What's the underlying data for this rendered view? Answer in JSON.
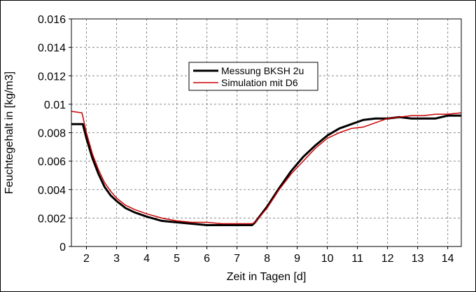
{
  "chart_data": {
    "type": "line",
    "title": "",
    "xlabel": "Zeit in Tagen [d]",
    "ylabel": "Feuchtegehalt in [kg/m3]",
    "xlim": [
      1.5,
      14.45
    ],
    "ylim": [
      0,
      0.016
    ],
    "xticks": [
      2,
      3,
      4,
      5,
      6,
      7,
      8,
      9,
      10,
      11,
      12,
      13,
      14
    ],
    "xtick_labels": [
      "2",
      "3",
      "4",
      "5",
      "6",
      "7",
      "8",
      "9",
      "10",
      "11",
      "12",
      "13",
      "14"
    ],
    "yticks": [
      0,
      0.002,
      0.004,
      0.006,
      0.008,
      0.01,
      0.012,
      0.014,
      0.016
    ],
    "ytick_labels": [
      "0",
      "0.002",
      "0.004",
      "0.006",
      "0.008",
      "0.01",
      "0.012",
      "0.014",
      "0.016"
    ],
    "grid": true,
    "legend": "upper-center",
    "series": [
      {
        "name": "Messung BKSH 2u",
        "color": "#000000",
        "x": [
          1.5,
          1.88,
          2.0,
          2.2,
          2.4,
          2.6,
          2.8,
          3.0,
          3.3,
          3.6,
          4.0,
          4.5,
          5.0,
          5.5,
          6.0,
          6.5,
          7.0,
          7.5,
          7.6,
          8.0,
          8.4,
          8.8,
          9.2,
          9.6,
          10.0,
          10.4,
          10.8,
          11.2,
          11.6,
          12.0,
          12.4,
          12.8,
          13.2,
          13.6,
          14.0,
          14.45
        ],
        "y": [
          0.0086,
          0.0086,
          0.0076,
          0.0062,
          0.0051,
          0.0042,
          0.0036,
          0.0032,
          0.0027,
          0.0024,
          0.0021,
          0.0018,
          0.0017,
          0.0016,
          0.0015,
          0.0015,
          0.0015,
          0.0015,
          0.0017,
          0.0028,
          0.0041,
          0.0053,
          0.0063,
          0.0071,
          0.0078,
          0.0083,
          0.0086,
          0.0089,
          0.009,
          0.009,
          0.0091,
          0.009,
          0.009,
          0.009,
          0.0092,
          0.0092
        ]
      },
      {
        "name": "Simulation mit D6",
        "color": "#cc0000",
        "x": [
          1.5,
          1.85,
          2.0,
          2.2,
          2.4,
          2.6,
          2.8,
          3.0,
          3.3,
          3.6,
          4.0,
          4.5,
          5.0,
          5.5,
          6.0,
          6.5,
          7.0,
          7.5,
          7.6,
          8.0,
          8.4,
          8.8,
          9.2,
          9.6,
          10.0,
          10.4,
          10.8,
          11.2,
          11.6,
          12.0,
          12.4,
          12.8,
          13.2,
          13.6,
          14.0,
          14.45
        ],
        "y": [
          0.0095,
          0.0094,
          0.008,
          0.0065,
          0.0054,
          0.0045,
          0.0039,
          0.0034,
          0.0029,
          0.0026,
          0.0023,
          0.002,
          0.0018,
          0.0017,
          0.0017,
          0.0016,
          0.0016,
          0.0016,
          0.0017,
          0.0027,
          0.004,
          0.0051,
          0.006,
          0.0069,
          0.0076,
          0.008,
          0.0083,
          0.0084,
          0.0087,
          0.009,
          0.0091,
          0.0092,
          0.0092,
          0.0093,
          0.0093,
          0.0094
        ]
      }
    ]
  }
}
